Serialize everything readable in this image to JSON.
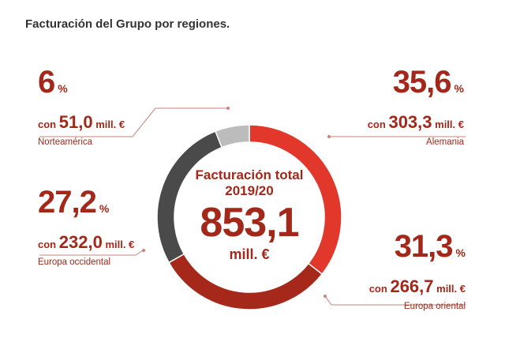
{
  "title": "Facturación del Grupo por regiones.",
  "center": {
    "line1": "Facturación total",
    "line2": "2019/20",
    "value": "853,1",
    "unit": "mill. €"
  },
  "labels": {
    "pct_unit": "%",
    "prefix": "con",
    "amount_unit": "mill. €"
  },
  "chart_data": {
    "type": "pie",
    "donut": true,
    "categories": [
      "Alemania",
      "Europa oriental",
      "Europa occidental",
      "Norteamérica"
    ],
    "values": [
      35.6,
      31.3,
      27.2,
      6
    ],
    "value_labels": [
      "35,6",
      "31,3",
      "27,2",
      "6"
    ],
    "amounts": [
      "303,3",
      "266,7",
      "232,0",
      "51,0"
    ],
    "colors": [
      "#e2372b",
      "#a5281a",
      "#4a4a4a",
      "#bcbcbc"
    ],
    "total": "853,1"
  }
}
